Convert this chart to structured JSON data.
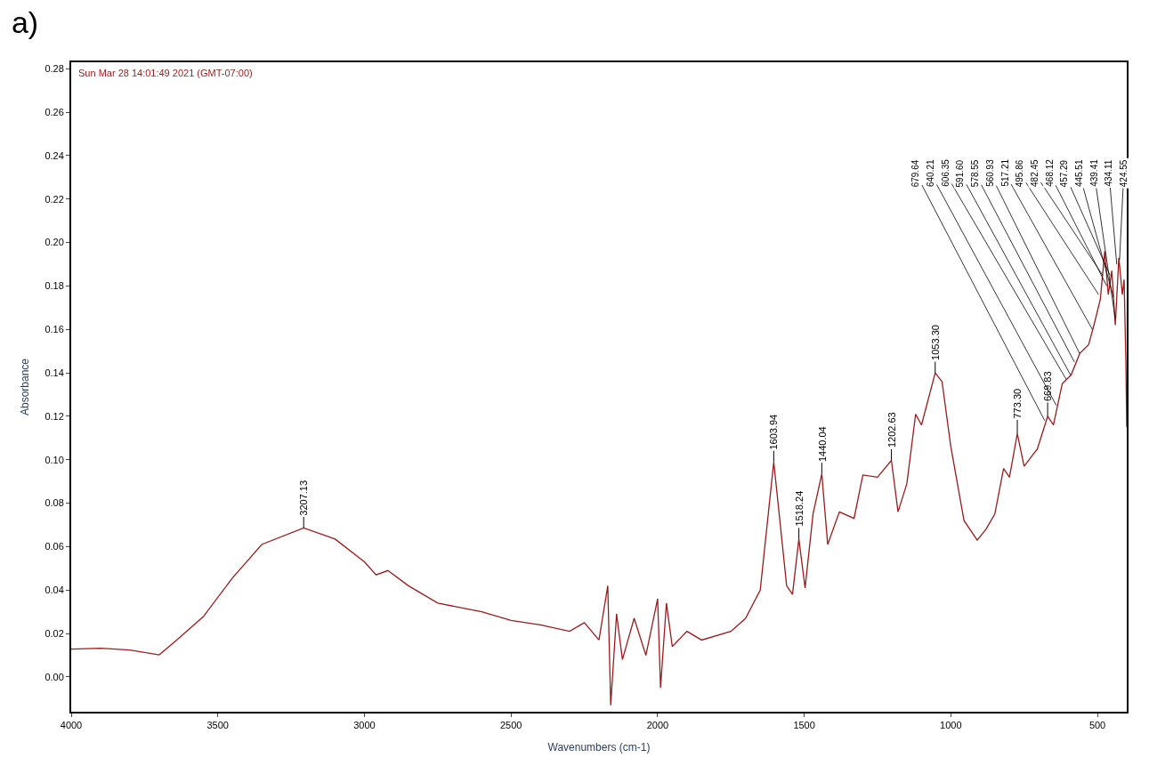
{
  "chart_data": {
    "type": "line",
    "title": "a)",
    "xlabel": "Wavenumbers (cm-1)",
    "ylabel": "Absorbance",
    "x": [
      4000,
      3900,
      3800,
      3700,
      3650,
      3550,
      3450,
      3350,
      3207.13,
      3100,
      3000,
      2960,
      2920,
      2850,
      2750,
      2600,
      2500,
      2400,
      2300,
      2250,
      2200,
      2170,
      2160,
      2140,
      2120,
      2080,
      2040,
      2000,
      1990,
      1970,
      1950,
      1900,
      1850,
      1750,
      1700,
      1650,
      1625,
      1603.94,
      1580,
      1560,
      1540,
      1518.24,
      1497,
      1470,
      1440.04,
      1420,
      1380,
      1330,
      1300,
      1250,
      1202.63,
      1180,
      1150,
      1120,
      1100,
      1053.3,
      1030,
      1000,
      955,
      910,
      880,
      850,
      820,
      800,
      773.3,
      750,
      705,
      669.83,
      650,
      620,
      590,
      560,
      530,
      510,
      490,
      475,
      463,
      451,
      439,
      427,
      415,
      409,
      403,
      400
    ],
    "series": [
      {
        "color": "#9b1b1b",
        "values": [
          0.0128,
          0.0132,
          0.0124,
          0.0102,
          0.0158,
          0.0277,
          0.0456,
          0.061,
          0.0686,
          0.0635,
          0.053,
          0.047,
          0.049,
          0.042,
          0.034,
          0.03,
          0.026,
          0.024,
          0.021,
          0.025,
          0.017,
          0.042,
          -0.013,
          0.029,
          0.008,
          0.027,
          0.01,
          0.036,
          -0.005,
          0.034,
          0.014,
          0.021,
          0.017,
          0.021,
          0.027,
          0.04,
          0.072,
          0.099,
          0.068,
          0.042,
          0.038,
          0.0635,
          0.041,
          0.075,
          0.0935,
          0.061,
          0.076,
          0.073,
          0.093,
          0.092,
          0.0997,
          0.076,
          0.089,
          0.121,
          0.116,
          0.14,
          0.136,
          0.106,
          0.072,
          0.063,
          0.068,
          0.075,
          0.096,
          0.092,
          0.112,
          0.097,
          0.105,
          0.12,
          0.116,
          0.135,
          0.139,
          0.149,
          0.153,
          0.163,
          0.174,
          0.196,
          0.176,
          0.187,
          0.162,
          0.193,
          0.176,
          0.183,
          0.145,
          0.115
        ]
      }
    ],
    "xlim": [
      4000,
      400
    ],
    "xticks": [
      4000,
      3500,
      3000,
      2500,
      2000,
      1500,
      1000,
      500
    ],
    "ylim": [
      -0.016,
      0.283
    ],
    "yticks": [
      {
        "value": 0,
        "label": "0.00"
      },
      {
        "value": 0.02,
        "label": "0.02"
      },
      {
        "value": 0.04,
        "label": "0.04"
      },
      {
        "value": 0.06,
        "label": "0.06"
      },
      {
        "value": 0.08,
        "label": "0.08"
      },
      {
        "value": 0.1,
        "label": "0.10"
      },
      {
        "value": 0.12,
        "label": "0.12"
      },
      {
        "value": 0.14,
        "label": "0.14"
      },
      {
        "value": 0.16,
        "label": "0.16"
      },
      {
        "value": 0.18,
        "label": "0.18"
      },
      {
        "value": 0.2,
        "label": "0.20"
      },
      {
        "value": 0.22,
        "label": "0.22"
      },
      {
        "value": 0.24,
        "label": "0.24"
      },
      {
        "value": 0.26,
        "label": "0.26"
      },
      {
        "value": 0.28,
        "label": "0.28"
      }
    ],
    "marker": "none",
    "line_style": "solid",
    "annotations": [
      "Sun Mar 28 14:01:49 2021 (GMT-07:00)",
      {
        "text": "3207.13",
        "x": 3207.13,
        "y": 0.0686
      },
      {
        "text": "1603.94",
        "x": 1603.94,
        "y": 0.099
      },
      {
        "text": "1518.24",
        "x": 1518.24,
        "y": 0.0635
      },
      {
        "text": "1440.04",
        "x": 1440.04,
        "y": 0.0935
      },
      {
        "text": "1202.63",
        "x": 1202.63,
        "y": 0.0997
      },
      {
        "text": "1053.30",
        "x": 1053.3,
        "y": 0.14
      },
      {
        "text": "773.30",
        "x": 773.3,
        "y": 0.112
      },
      {
        "text": "669.83",
        "x": 669.83,
        "y": 0.12
      },
      {
        "text": "679.64",
        "x": 679.64,
        "y": 0.118
      },
      {
        "text": "640.21",
        "x": 640.21,
        "y": 0.125
      },
      {
        "text": "606.35",
        "x": 606.35,
        "y": 0.137
      },
      {
        "text": "591.60",
        "x": 591.6,
        "y": 0.139
      },
      {
        "text": "578.55",
        "x": 578.55,
        "y": 0.145
      },
      {
        "text": "560.93",
        "x": 560.93,
        "y": 0.149
      },
      {
        "text": "517.21",
        "x": 517.21,
        "y": 0.16
      },
      {
        "text": "495.86",
        "x": 495.86,
        "y": 0.176
      },
      {
        "text": "482.45",
        "x": 482.45,
        "y": 0.185
      },
      {
        "text": "468.12",
        "x": 468.12,
        "y": 0.18
      },
      {
        "text": "457.29",
        "x": 457.29,
        "y": 0.185
      },
      {
        "text": "445.51",
        "x": 445.51,
        "y": 0.175
      },
      {
        "text": "439.41",
        "x": 439.41,
        "y": 0.165
      },
      {
        "text": "434.11",
        "x": 434.11,
        "y": 0.19
      },
      {
        "text": "424.55",
        "x": 424.55,
        "y": 0.192
      }
    ]
  }
}
